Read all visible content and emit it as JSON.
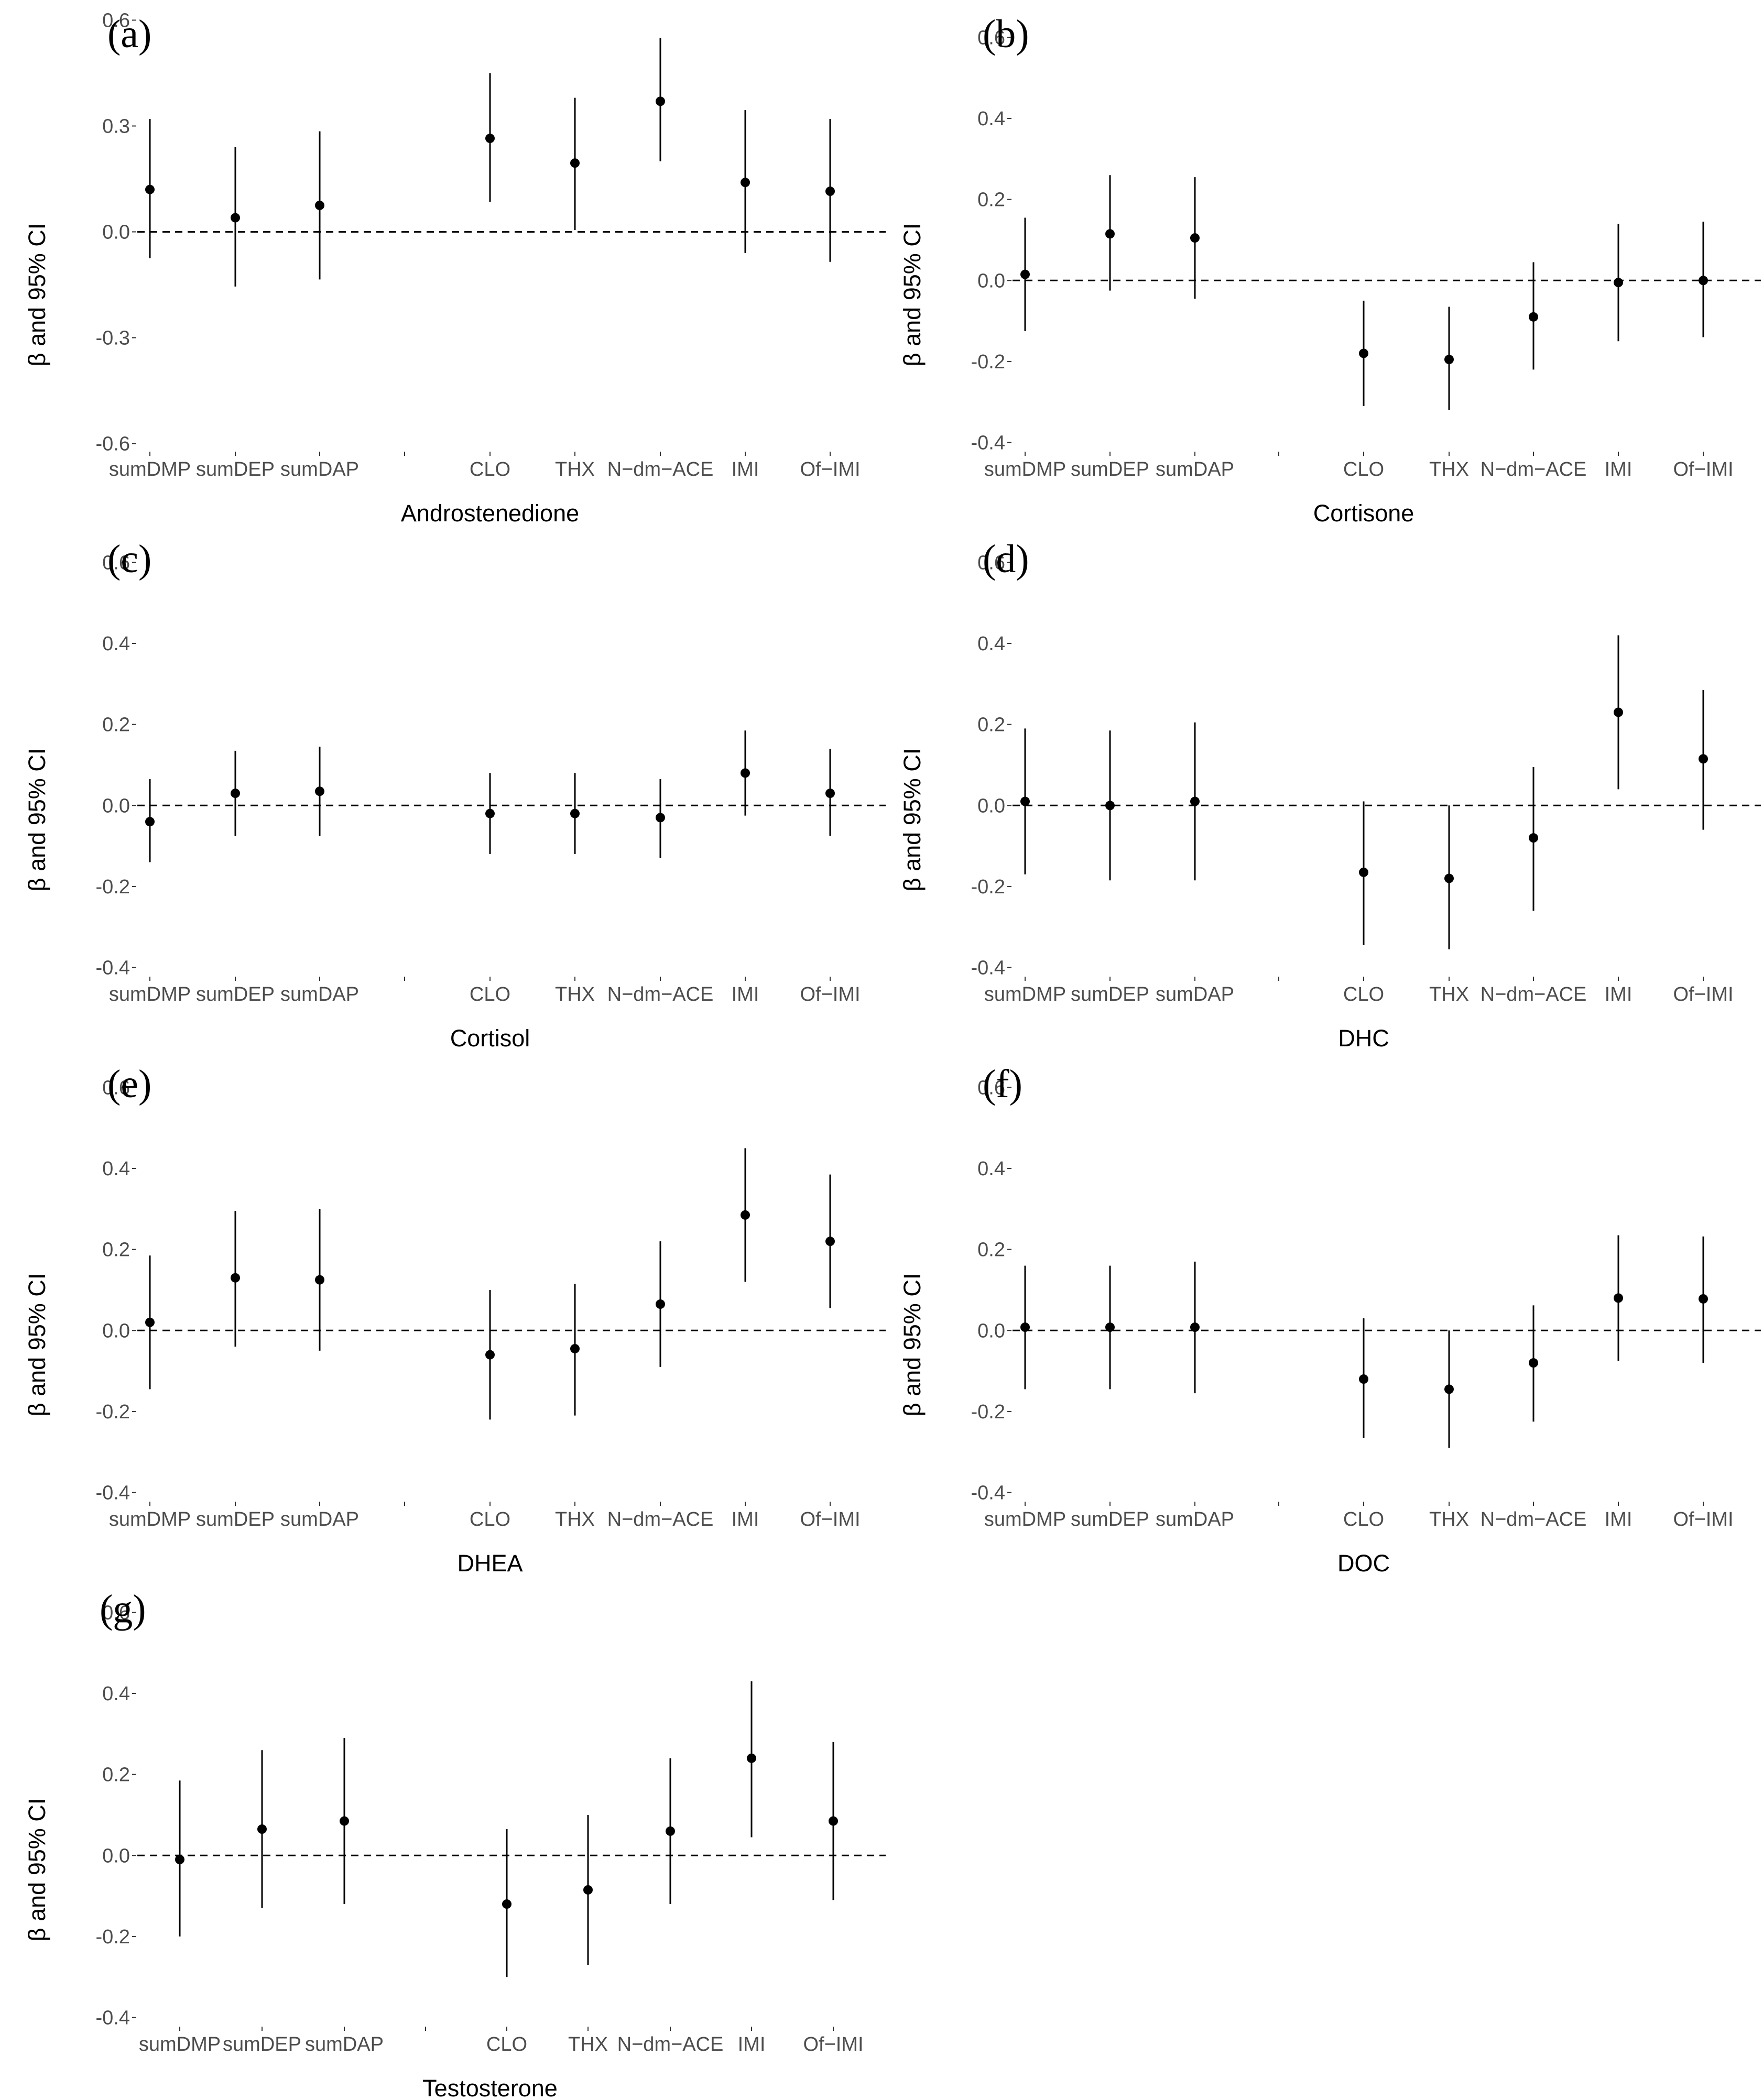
{
  "chart_data": [
    {
      "panel": "(a)",
      "type": "scatter",
      "title": "Androstenedione",
      "xlabel": "Androstenedione",
      "ylabel": "β and 95% CI",
      "categories": [
        "sumDMP",
        "sumDEP",
        "sumDAP",
        "",
        "CLO",
        "THX",
        "N−dm−ACE",
        "IMI",
        "Of−IMI"
      ],
      "ylim": [
        -0.62,
        0.62
      ],
      "yticks": [
        "0.6",
        "0.3",
        "0.0",
        "-0.3",
        "-0.6"
      ],
      "ytick_values": [
        0.6,
        0.3,
        0.0,
        -0.3,
        -0.6
      ],
      "estimates": [
        0.12,
        0.04,
        0.075,
        null,
        0.265,
        0.195,
        0.37,
        0.14,
        0.115
      ],
      "ci_lower": [
        -0.075,
        -0.155,
        -0.135,
        null,
        0.085,
        0.005,
        0.2,
        -0.06,
        -0.085
      ],
      "ci_upper": [
        0.32,
        0.24,
        0.285,
        null,
        0.45,
        0.38,
        0.55,
        0.345,
        0.32
      ]
    },
    {
      "panel": "(b)",
      "type": "scatter",
      "title": "Cortisone",
      "xlabel": "Cortisone",
      "ylabel": "β and 95% CI",
      "categories": [
        "sumDMP",
        "sumDEP",
        "sumDAP",
        "",
        "CLO",
        "THX",
        "N−dm−ACE",
        "IMI",
        "Of−IMI"
      ],
      "ylim": [
        -0.42,
        0.66
      ],
      "yticks": [
        "0.6",
        "0.4",
        "0.2",
        "0.0",
        "-0.2",
        "-0.4"
      ],
      "ytick_values": [
        0.6,
        0.4,
        0.2,
        0.0,
        -0.2,
        -0.4
      ],
      "estimates": [
        0.015,
        0.115,
        0.105,
        null,
        -0.18,
        -0.195,
        -0.09,
        -0.005,
        0.0
      ],
      "ci_lower": [
        -0.125,
        -0.025,
        -0.045,
        null,
        -0.31,
        -0.32,
        -0.22,
        -0.15,
        -0.14
      ],
      "ci_upper": [
        0.155,
        0.26,
        0.255,
        null,
        -0.05,
        -0.065,
        0.045,
        0.14,
        0.145
      ]
    },
    {
      "panel": "(c)",
      "type": "scatter",
      "title": "Cortisol",
      "xlabel": "Cortisol",
      "ylabel": "β and 95% CI",
      "categories": [
        "sumDMP",
        "sumDEP",
        "sumDAP",
        "",
        "CLO",
        "THX",
        "N−dm−ACE",
        "IMI",
        "Of−IMI"
      ],
      "ylim": [
        -0.42,
        0.66
      ],
      "yticks": [
        "0.6",
        "0.4",
        "0.2",
        "0.0",
        "-0.2",
        "-0.4"
      ],
      "ytick_values": [
        0.6,
        0.4,
        0.2,
        0.0,
        -0.2,
        -0.4
      ],
      "estimates": [
        -0.04,
        0.03,
        0.035,
        null,
        -0.02,
        -0.02,
        -0.03,
        0.08,
        0.03
      ],
      "ci_lower": [
        -0.14,
        -0.075,
        -0.075,
        null,
        -0.12,
        -0.12,
        -0.13,
        -0.025,
        -0.075
      ],
      "ci_upper": [
        0.065,
        0.135,
        0.145,
        null,
        0.08,
        0.08,
        0.065,
        0.185,
        0.14
      ]
    },
    {
      "panel": "(d)",
      "type": "scatter",
      "title": "DHC",
      "xlabel": "DHC",
      "ylabel": "β and 95% CI",
      "categories": [
        "sumDMP",
        "sumDEP",
        "sumDAP",
        "",
        "CLO",
        "THX",
        "N−dm−ACE",
        "IMI",
        "Of−IMI"
      ],
      "ylim": [
        -0.42,
        0.66
      ],
      "yticks": [
        "0.6",
        "0.4",
        "0.2",
        "0.0",
        "-0.2",
        "-0.4"
      ],
      "ytick_values": [
        0.6,
        0.4,
        0.2,
        0.0,
        -0.2,
        -0.4
      ],
      "estimates": [
        0.01,
        0.0,
        0.01,
        null,
        -0.165,
        -0.18,
        -0.08,
        0.23,
        0.115
      ],
      "ci_lower": [
        -0.17,
        -0.185,
        -0.185,
        null,
        -0.345,
        -0.355,
        -0.26,
        0.04,
        -0.06
      ],
      "ci_upper": [
        0.19,
        0.185,
        0.205,
        null,
        0.01,
        0.0,
        0.095,
        0.42,
        0.285
      ]
    },
    {
      "panel": "(e)",
      "type": "scatter",
      "title": "DHEA",
      "xlabel": "DHEA",
      "ylabel": "β and 95% CI",
      "categories": [
        "sumDMP",
        "sumDEP",
        "sumDAP",
        "",
        "CLO",
        "THX",
        "N−dm−ACE",
        "IMI",
        "Of−IMI"
      ],
      "ylim": [
        -0.42,
        0.66
      ],
      "yticks": [
        "0.6",
        "0.4",
        "0.2",
        "0.0",
        "-0.2",
        "-0.4"
      ],
      "ytick_values": [
        0.6,
        0.4,
        0.2,
        0.0,
        -0.2,
        -0.4
      ],
      "estimates": [
        0.02,
        0.13,
        0.125,
        null,
        -0.06,
        -0.045,
        0.065,
        0.285,
        0.22
      ],
      "ci_lower": [
        -0.145,
        -0.04,
        -0.05,
        null,
        -0.22,
        -0.21,
        -0.09,
        0.12,
        0.055
      ],
      "ci_upper": [
        0.185,
        0.295,
        0.3,
        null,
        0.1,
        0.115,
        0.22,
        0.45,
        0.385
      ]
    },
    {
      "panel": "(f)",
      "type": "scatter",
      "title": "DOC",
      "xlabel": "DOC",
      "ylabel": "β and 95% CI",
      "categories": [
        "sumDMP",
        "sumDEP",
        "sumDAP",
        "",
        "CLO",
        "THX",
        "N−dm−ACE",
        "IMI",
        "Of−IMI"
      ],
      "ylim": [
        -0.42,
        0.66
      ],
      "yticks": [
        "0.6",
        "0.4",
        "0.2",
        "0.0",
        "-0.2",
        "-0.4"
      ],
      "ytick_values": [
        0.6,
        0.4,
        0.2,
        0.0,
        -0.2,
        -0.4
      ],
      "estimates": [
        0.008,
        0.008,
        0.008,
        null,
        -0.12,
        -0.145,
        -0.08,
        0.08,
        0.078
      ],
      "ci_lower": [
        -0.145,
        -0.145,
        -0.155,
        null,
        -0.265,
        -0.29,
        -0.225,
        -0.075,
        -0.08
      ],
      "ci_upper": [
        0.16,
        0.16,
        0.17,
        null,
        0.03,
        0.0,
        0.062,
        0.235,
        0.232
      ]
    },
    {
      "panel": "(g)",
      "type": "scatter",
      "title": "Testosterone",
      "xlabel": "Testosterone",
      "ylabel": "β and 95% CI",
      "categories": [
        "sumDMP",
        "sumDEP",
        "sumDAP",
        "",
        "CLO",
        "THX",
        "N−dm−ACE",
        "IMI",
        "Of−IMI"
      ],
      "ylim": [
        -0.42,
        0.66
      ],
      "yticks": [
        "0.6",
        "0.4",
        "0.2",
        "0.0",
        "-0.2",
        "-0.4"
      ],
      "ytick_values": [
        0.6,
        0.4,
        0.2,
        0.0,
        -0.2,
        -0.4
      ],
      "estimates": [
        -0.01,
        0.065,
        0.085,
        null,
        -0.12,
        -0.085,
        0.06,
        0.24,
        0.085
      ],
      "ci_lower": [
        -0.2,
        -0.13,
        -0.12,
        null,
        -0.3,
        -0.27,
        -0.12,
        0.045,
        -0.11
      ],
      "ci_upper": [
        0.185,
        0.26,
        0.29,
        null,
        0.065,
        0.1,
        0.24,
        0.43,
        0.28
      ]
    }
  ]
}
